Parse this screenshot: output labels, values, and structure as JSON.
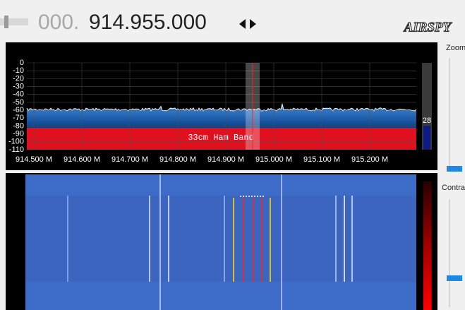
{
  "header": {
    "frequency_prefix": "000.",
    "frequency": "914.955.000",
    "logo": "AIRSPY"
  },
  "spectrum": {
    "yticks": [
      0,
      -10,
      -20,
      -30,
      -40,
      -50,
      -60,
      -70,
      -80,
      -90,
      -100,
      -110
    ],
    "xtick_labels": [
      "914.500 M",
      "914.600 M",
      "914.700 M",
      "914.800 M",
      "914.900 M",
      "915.000 M",
      "915.100 M",
      "915.200 M"
    ],
    "band_label": "33cm Ham Band",
    "level": 28
  },
  "sidebar": {
    "zoom_label": "Zoom",
    "contrast_label": "Contra"
  }
}
